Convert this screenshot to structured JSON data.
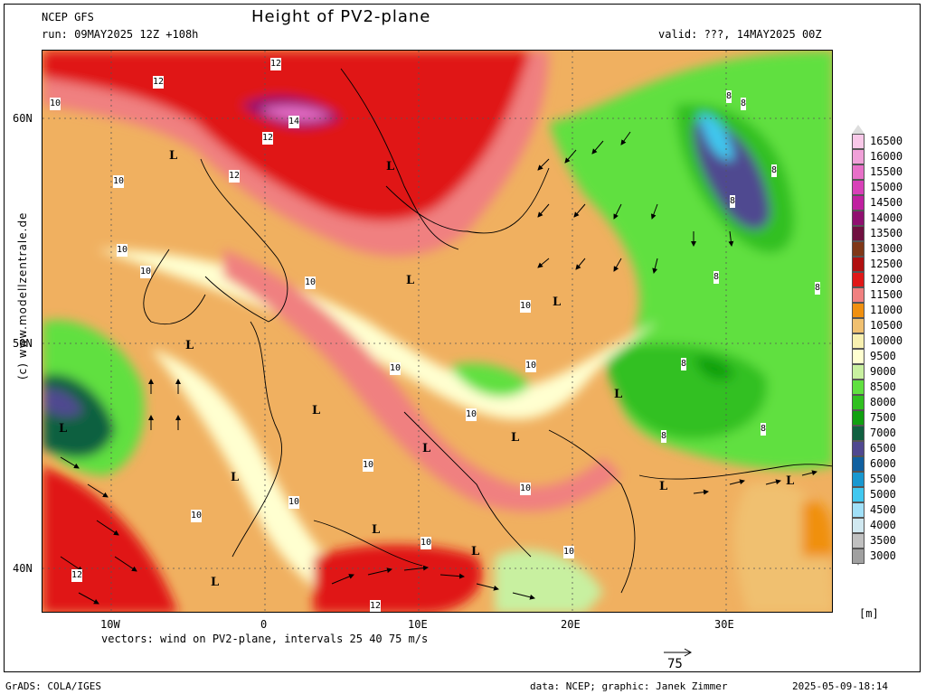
{
  "header": {
    "model": "NCEP GFS",
    "run": "run: 09MAY2025 12Z +108h",
    "title": "Height of PV2-plane",
    "valid": "valid: ???, 14MAY2025 00Z"
  },
  "side_credit": "(c) www.modellzentrale.de",
  "axes": {
    "lat_labels": [
      "60N",
      "50N",
      "40N"
    ],
    "lon_labels": [
      "10W",
      "0",
      "10E",
      "20E",
      "30E"
    ]
  },
  "vectors_caption": "vectors: wind on PV2-plane, intervals 25 40 75 m/s",
  "reference_vector": {
    "label": "75"
  },
  "legend": {
    "unit": "[m]",
    "levels": [
      {
        "label": "16500",
        "color": "#f8c8e8"
      },
      {
        "label": "16000",
        "color": "#f0a0d8"
      },
      {
        "label": "15500",
        "color": "#e870c8"
      },
      {
        "label": "15000",
        "color": "#d840b8"
      },
      {
        "label": "14500",
        "color": "#c020a0"
      },
      {
        "label": "14000",
        "color": "#901070"
      },
      {
        "label": "13500",
        "color": "#701040"
      },
      {
        "label": "13000",
        "color": "#803818"
      },
      {
        "label": "12500",
        "color": "#b01010"
      },
      {
        "label": "12000",
        "color": "#e01818"
      },
      {
        "label": "11500",
        "color": "#f08080"
      },
      {
        "label": "11000",
        "color": "#f09010"
      },
      {
        "label": "10500",
        "color": "#f0c070"
      },
      {
        "label": "10000",
        "color": "#f8f0b0"
      },
      {
        "label": "9500",
        "color": "#ffffd0"
      },
      {
        "label": "9000",
        "color": "#c8f0a0"
      },
      {
        "label": "8500",
        "color": "#60e040"
      },
      {
        "label": "8000",
        "color": "#30c020"
      },
      {
        "label": "7500",
        "color": "#10a010"
      },
      {
        "label": "7000",
        "color": "#106040"
      },
      {
        "label": "6500",
        "color": "#504890"
      },
      {
        "label": "6000",
        "color": "#1060a0"
      },
      {
        "label": "5500",
        "color": "#1898d0"
      },
      {
        "label": "5000",
        "color": "#40c8f0"
      },
      {
        "label": "4500",
        "color": "#a0e0f8"
      },
      {
        "label": "4000",
        "color": "#d0e8f0"
      },
      {
        "label": "3500",
        "color": "#c0c0c0"
      },
      {
        "label": "3000",
        "color": "#a0a0a0"
      }
    ]
  },
  "map_labels": {
    "contours": [
      "12",
      "12",
      "12",
      "14",
      "12",
      "10",
      "10",
      "10",
      "10",
      "10",
      "10",
      "10",
      "10",
      "10",
      "10",
      "10",
      "10",
      "10",
      "10",
      "10",
      "8",
      "8",
      "8",
      "8",
      "8",
      "8",
      "8",
      "8",
      "8",
      "12",
      "12"
    ],
    "lows": [
      "L"
    ]
  },
  "footer": {
    "grads": "GrADS: COLA/IGES",
    "credit": "data: NCEP; graphic: Janek Zimmer",
    "timestamp": "2025-05-09-18:14"
  }
}
